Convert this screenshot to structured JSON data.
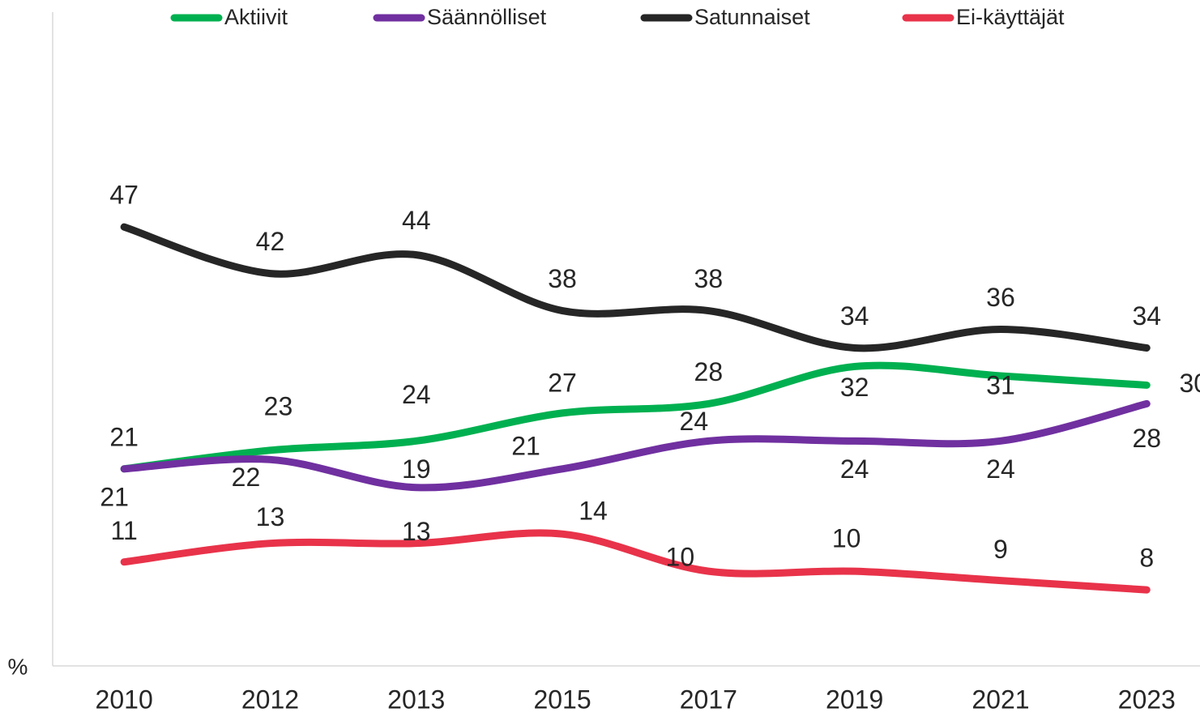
{
  "chart_data": {
    "type": "line",
    "y_label": "%",
    "categories": [
      "2010",
      "2012",
      "2013",
      "2015",
      "2017",
      "2019",
      "2021",
      "2023"
    ],
    "ylim": [
      0,
      70
    ],
    "legend": "top",
    "series": [
      {
        "name": "Aktiivit",
        "color": "#00b050",
        "values": [
          21,
          23,
          24,
          27,
          28,
          32,
          31,
          30
        ]
      },
      {
        "name": "Säännölliset",
        "color": "#7030a0",
        "values": [
          21,
          22,
          19,
          21,
          24,
          24,
          24,
          28
        ]
      },
      {
        "name": "Satunnaiset",
        "color": "#262626",
        "values": [
          47,
          42,
          44,
          38,
          38,
          34,
          36,
          34
        ]
      },
      {
        "name": "Ei-käyttäjät",
        "color": "#e8334a",
        "values": [
          11,
          13,
          13,
          14,
          10,
          10,
          9,
          8
        ]
      }
    ]
  }
}
